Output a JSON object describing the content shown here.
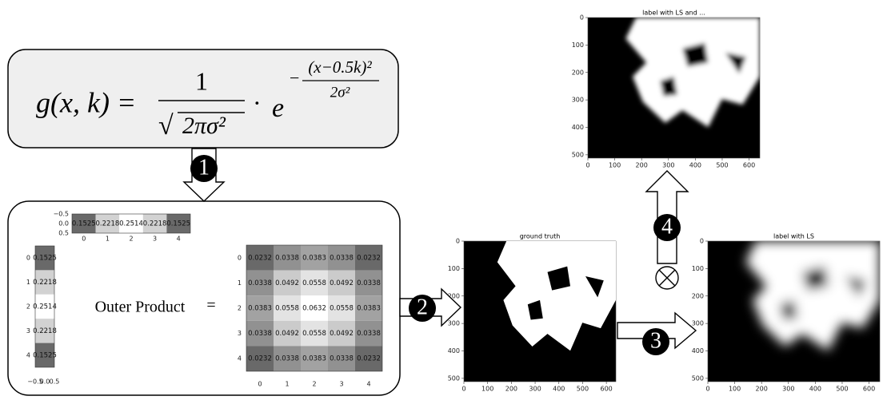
{
  "formula": {
    "lhs": "g(x, k) =",
    "numerator": "1",
    "root": "√",
    "denominator": "2πσ²",
    "dot": "·",
    "base": "e",
    "exp_sign": "−",
    "exp_numerator": "(x−0.5k)²",
    "exp_denominator": "2σ²"
  },
  "steps": [
    "1",
    "2",
    "3",
    "4"
  ],
  "row_vector": {
    "values": [
      "0.1525",
      "0.2218",
      "0.2514",
      "0.2218",
      "0.1525"
    ],
    "xticks": [
      "0",
      "1",
      "2",
      "3",
      "4"
    ],
    "yticks": [
      "−0.5",
      "0.0",
      "0.5"
    ]
  },
  "column_vector": {
    "values": [
      "0.1525",
      "0.2218",
      "0.2514",
      "0.2218",
      "0.1525"
    ],
    "yticks": [
      "0",
      "1",
      "2",
      "3",
      "4"
    ],
    "xticks": [
      "−0.5",
      "0.0",
      "0.5"
    ]
  },
  "operation": {
    "label": "Outer Product",
    "equals": "="
  },
  "matrix": {
    "rows": [
      [
        "0.0232",
        "0.0338",
        "0.0383",
        "0.0338",
        "0.0232"
      ],
      [
        "0.0338",
        "0.0492",
        "0.0558",
        "0.0492",
        "0.0338"
      ],
      [
        "0.0383",
        "0.0558",
        "0.0632",
        "0.0558",
        "0.0383"
      ],
      [
        "0.0338",
        "0.0492",
        "0.0558",
        "0.0492",
        "0.0338"
      ],
      [
        "0.0232",
        "0.0338",
        "0.0383",
        "0.0338",
        "0.0232"
      ]
    ],
    "xticks": [
      "0",
      "1",
      "2",
      "3",
      "4"
    ],
    "yticks": [
      "0",
      "1",
      "2",
      "3",
      "4"
    ]
  },
  "images": [
    {
      "title": "ground truth",
      "xticks": [
        "0",
        "100",
        "200",
        "300",
        "400",
        "500",
        "600"
      ],
      "yticks": [
        "0",
        "100",
        "200",
        "300",
        "400",
        "500"
      ]
    },
    {
      "title": "label with LS and ...",
      "xticks": [
        "0",
        "100",
        "200",
        "300",
        "400",
        "500",
        "600"
      ],
      "yticks": [
        "0",
        "100",
        "200",
        "300",
        "400",
        "500"
      ]
    },
    {
      "title": "label with LS",
      "xticks": [
        "0",
        "100",
        "200",
        "300",
        "400",
        "500",
        "600"
      ],
      "yticks": [
        "0",
        "100",
        "200",
        "300",
        "400",
        "500"
      ]
    }
  ]
}
